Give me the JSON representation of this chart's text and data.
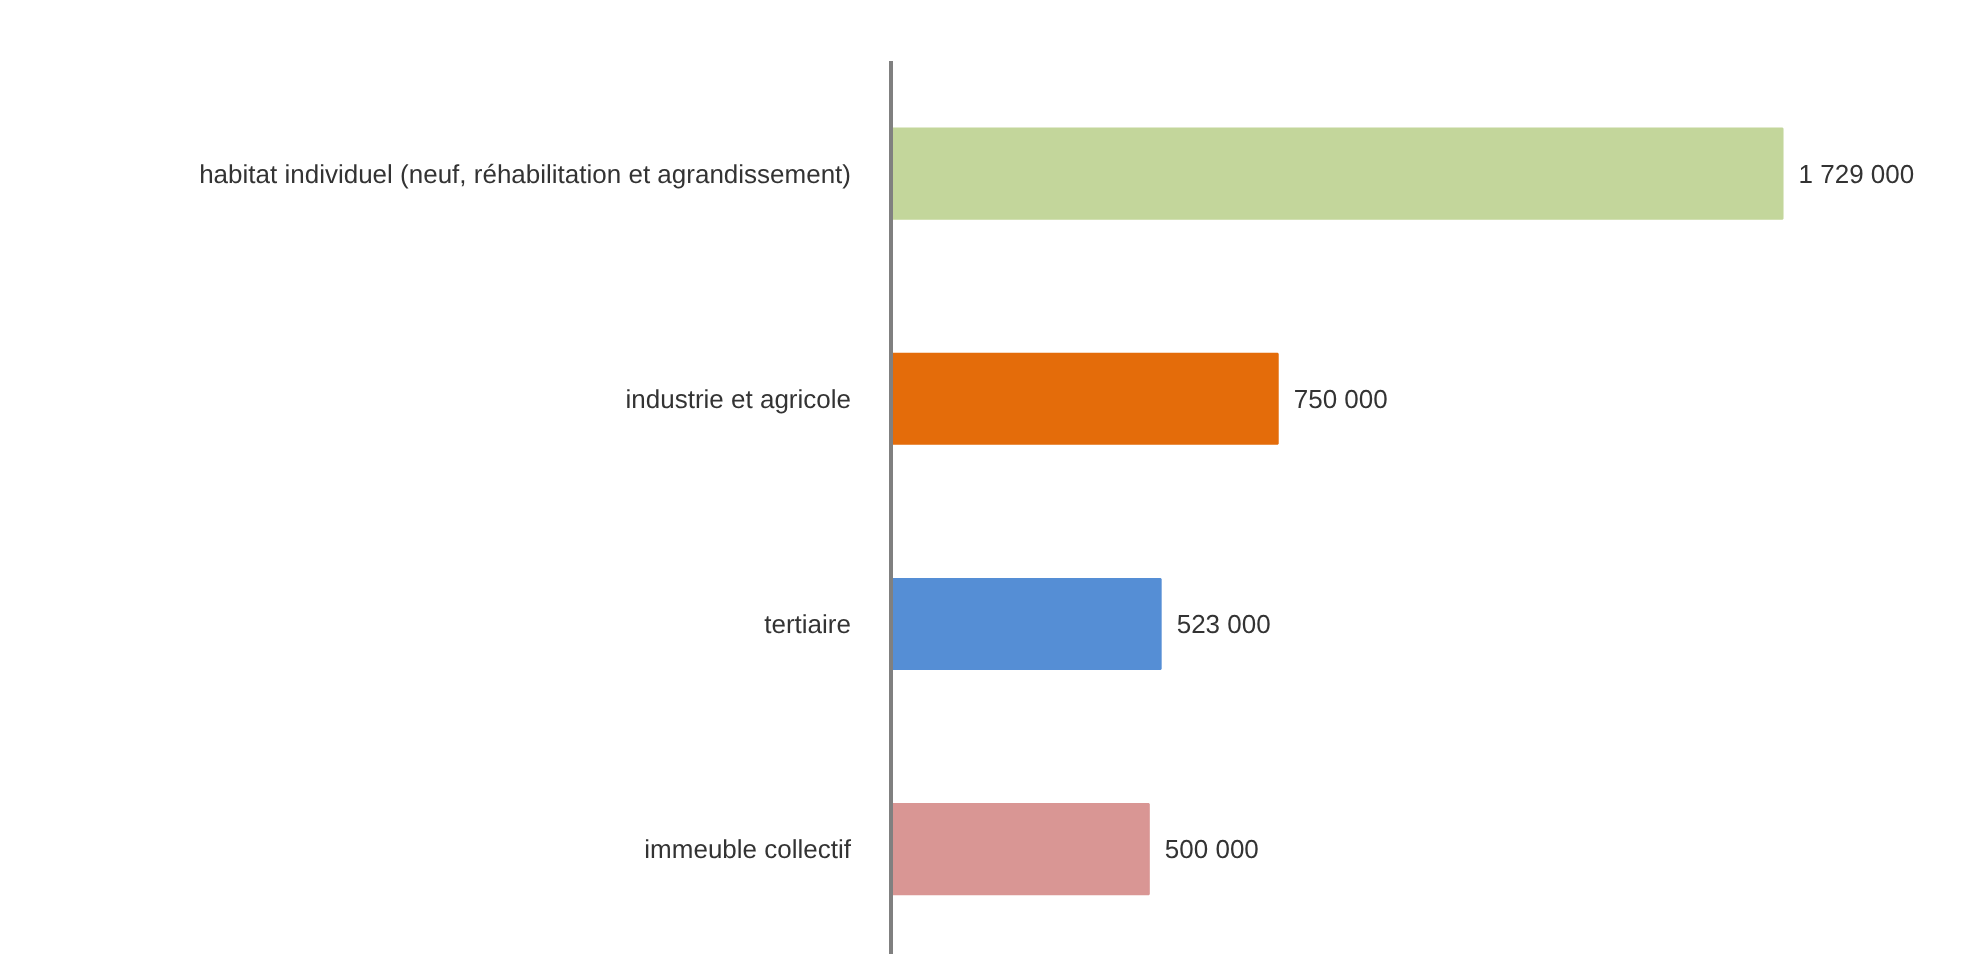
{
  "chart_data": {
    "type": "bar",
    "orientation": "horizontal",
    "categories": [
      "habitat individuel (neuf, réhabilitation et agrandissement)",
      "industrie et agricole",
      "tertiaire",
      "immeuble collectif"
    ],
    "values": [
      1729000,
      750000,
      523000,
      500000
    ],
    "colors": [
      "#c3d69b",
      "#e46c0a",
      "#558ed5",
      "#d99694"
    ],
    "value_labels": [
      "1 729 000",
      "750 000",
      "523 000",
      "500 000"
    ],
    "grid": false
  }
}
